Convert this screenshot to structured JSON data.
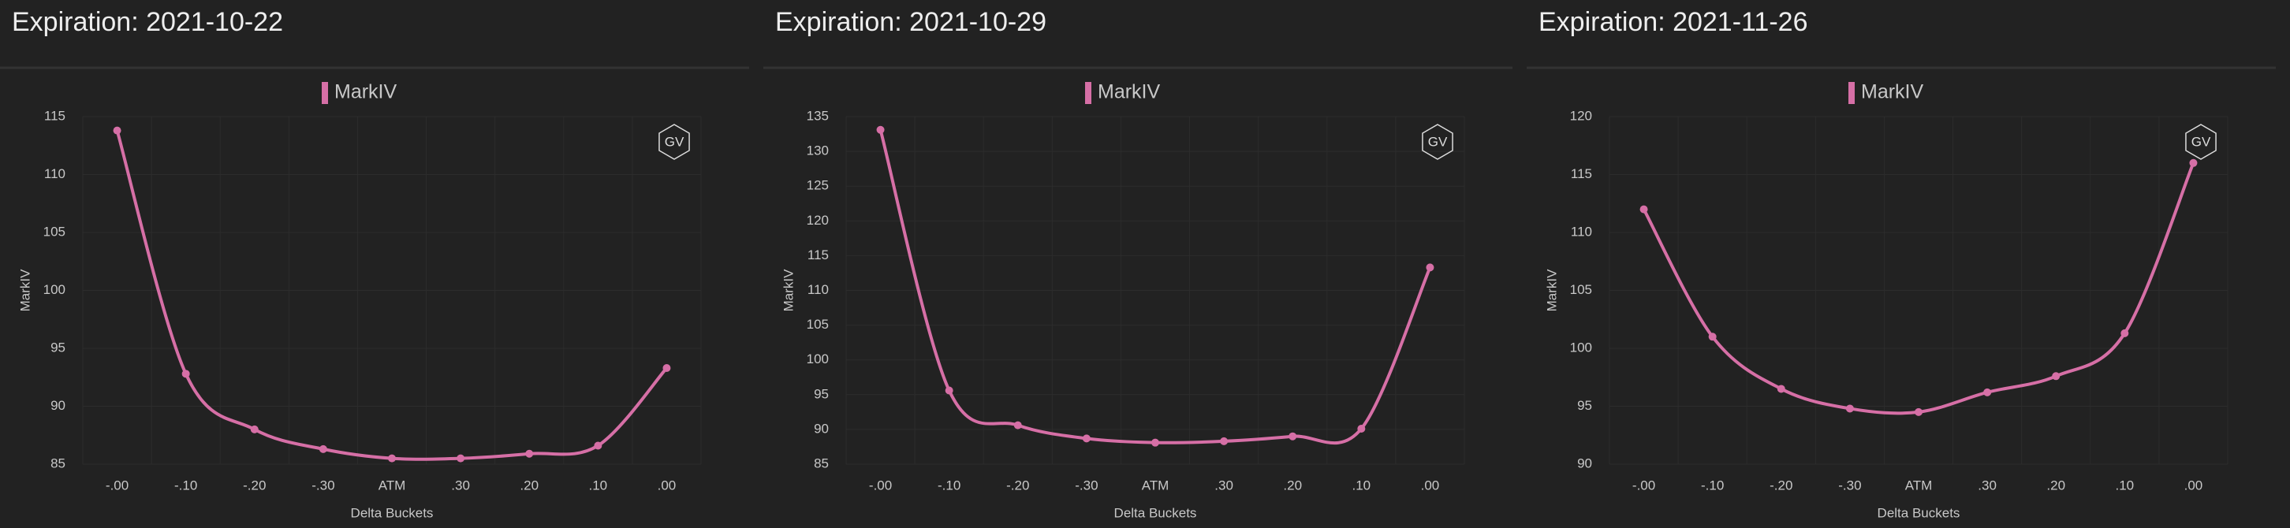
{
  "chart_data": [
    {
      "type": "line",
      "title": "Expiration: 2021-10-22",
      "logo": "GV",
      "xlabel": "Delta Buckets",
      "ylabel": "MarkIV",
      "categories": [
        "-.00",
        "-.10",
        "-.20",
        "-.30",
        "ATM",
        ".30",
        ".20",
        ".10",
        ".00"
      ],
      "series": [
        {
          "name": "MarkIV",
          "color": "#d66fa6",
          "values": [
            113.8,
            92.8,
            88.0,
            86.3,
            85.5,
            85.5,
            85.9,
            86.6,
            93.3
          ]
        }
      ],
      "ylim": [
        85,
        115
      ],
      "yticks": [
        85,
        90,
        95,
        100,
        105,
        110,
        115
      ],
      "grid": true
    },
    {
      "type": "line",
      "title": "Expiration: 2021-10-29",
      "logo": "GV",
      "xlabel": "Delta Buckets",
      "ylabel": "MarkIV",
      "categories": [
        "-.00",
        "-.10",
        "-.20",
        "-.30",
        "ATM",
        ".30",
        ".20",
        ".10",
        ".00"
      ],
      "series": [
        {
          "name": "MarkIV",
          "color": "#d66fa6",
          "values": [
            133.1,
            95.6,
            90.6,
            88.7,
            88.1,
            88.3,
            89.0,
            90.1,
            113.3
          ]
        }
      ],
      "ylim": [
        85,
        135
      ],
      "yticks": [
        85,
        90,
        95,
        100,
        105,
        110,
        115,
        120,
        125,
        130,
        135
      ],
      "grid": true
    },
    {
      "type": "line",
      "title": "Expiration: 2021-11-26",
      "logo": "GV",
      "xlabel": "Delta Buckets",
      "ylabel": "MarkIV",
      "categories": [
        "-.00",
        "-.10",
        "-.20",
        "-.30",
        "ATM",
        ".30",
        ".20",
        ".10",
        ".00"
      ],
      "series": [
        {
          "name": "MarkIV",
          "color": "#d66fa6",
          "values": [
            112.0,
            101.0,
            96.5,
            94.8,
            94.5,
            96.2,
            97.6,
            101.3,
            116.0
          ]
        }
      ],
      "ylim": [
        90,
        120
      ],
      "yticks": [
        90,
        95,
        100,
        105,
        110,
        115,
        120
      ],
      "grid": true
    }
  ]
}
